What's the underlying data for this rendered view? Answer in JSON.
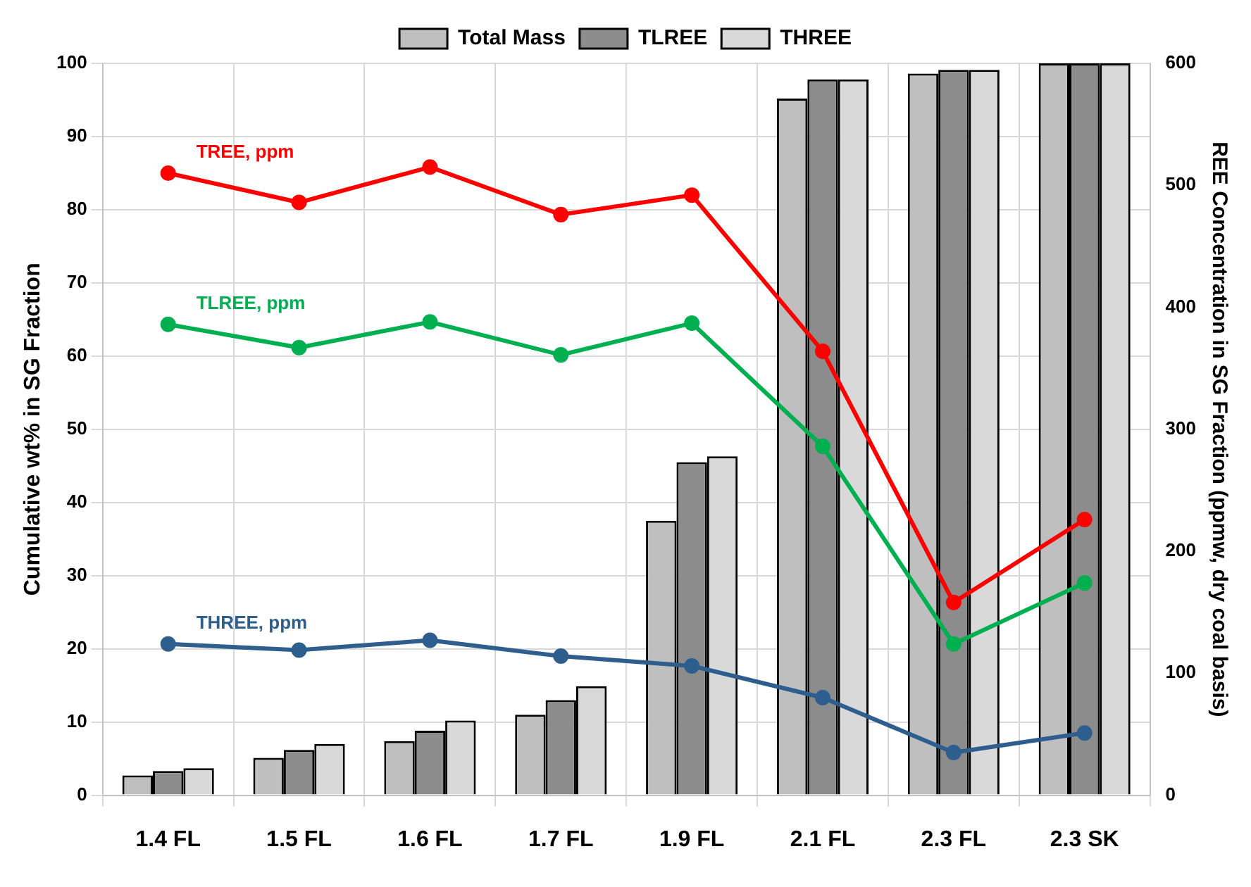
{
  "chart_data": {
    "type": "bar",
    "ylabel": "Cumulative wt% in SG Fraction",
    "y2label": "REE Concentration in SG Fraction (ppmw, dry coal basis)",
    "categories": [
      "1.4 FL",
      "1.5 FL",
      "1.6 FL",
      "1.7 FL",
      "1.9 FL",
      "2.1 FL",
      "2.3 FL",
      "2.3 SK"
    ],
    "series": [
      {
        "name": "Total Mass",
        "color": "#bfbfbf",
        "values": [
          2.7,
          5.1,
          7.4,
          11,
          37.5,
          95.2,
          98.6,
          100
        ]
      },
      {
        "name": "TLREE",
        "color": "#8c8c8c",
        "values": [
          3.3,
          6.2,
          8.8,
          13,
          45.5,
          97.8,
          99.1,
          100
        ]
      },
      {
        "name": "THREE",
        "color": "#d9d9d9",
        "values": [
          3.7,
          7.0,
          10.2,
          14.9,
          46.3,
          97.8,
          99.1,
          100
        ]
      },
      {
        "name": "TREE, ppm",
        "type": "line",
        "axis": "y2",
        "color": "#ff0000",
        "values": [
          510,
          486,
          515,
          476,
          492,
          364,
          158,
          226
        ]
      },
      {
        "name": "TLREE, ppm",
        "type": "line",
        "axis": "y2",
        "color": "#00b050",
        "values": [
          386,
          367,
          388,
          361,
          387,
          286,
          124,
          174
        ]
      },
      {
        "name": "THREE, ppm",
        "type": "line",
        "axis": "y2",
        "color": "#2e5e8e",
        "values": [
          124,
          119,
          127,
          114,
          106,
          80,
          35,
          51
        ]
      }
    ],
    "ylim": [
      0,
      100
    ],
    "yticks": [
      0,
      10,
      20,
      30,
      40,
      50,
      60,
      70,
      80,
      90,
      100
    ],
    "y2lim": [
      0,
      600
    ],
    "y2ticks": [
      0,
      100,
      200,
      300,
      400,
      500,
      600
    ],
    "grid": true,
    "legend": "top",
    "marker": "circle",
    "line_style": "solid"
  }
}
